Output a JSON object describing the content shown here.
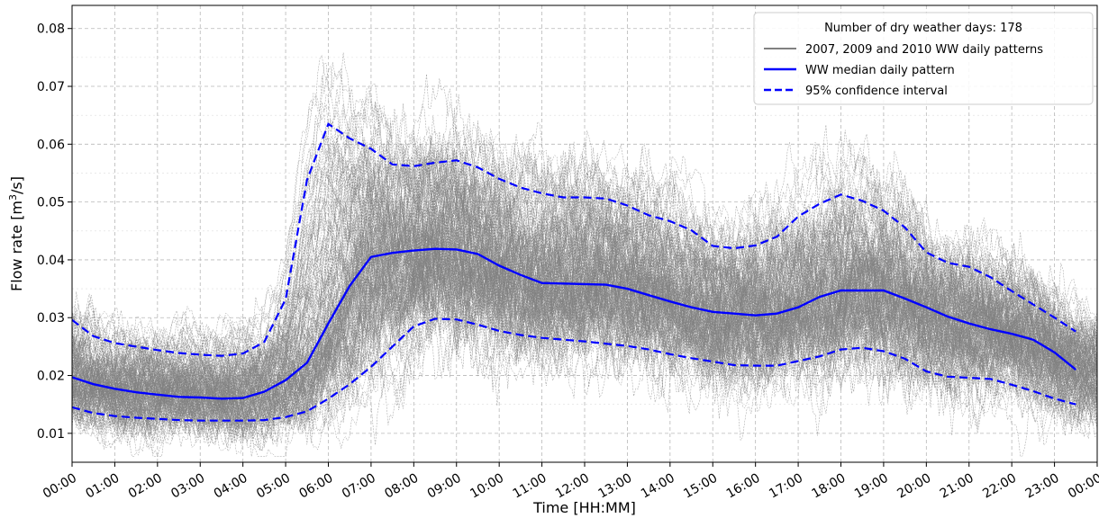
{
  "chart_data": {
    "type": "line",
    "title": "",
    "xlabel": "Time [HH:MM]",
    "ylabel_main": "Flow rate [m",
    "ylabel_sup": "3",
    "ylabel_tail": "/s]",
    "xlim": [
      0,
      24
    ],
    "ylim": [
      0.005,
      0.084
    ],
    "x_ticks": [
      "00:00",
      "01:00",
      "02:00",
      "03:00",
      "04:00",
      "05:00",
      "06:00",
      "07:00",
      "08:00",
      "09:00",
      "10:00",
      "11:00",
      "12:00",
      "13:00",
      "14:00",
      "15:00",
      "16:00",
      "17:00",
      "18:00",
      "19:00",
      "20:00",
      "21:00",
      "22:00",
      "23:00",
      "00:00"
    ],
    "y_ticks": [
      "0.01",
      "0.02",
      "0.03",
      "0.04",
      "0.05",
      "0.06",
      "0.07",
      "0.08"
    ],
    "y_tick_values": [
      0.01,
      0.02,
      0.03,
      0.04,
      0.05,
      0.06,
      0.07,
      0.08
    ],
    "grid": true,
    "legend": {
      "placement": "top-right",
      "title": "Number of dry weather days: 178",
      "entries": [
        "2007, 2009 and 2010 WW daily patterns",
        "WW median daily pattern",
        "95% confidence interval"
      ]
    },
    "daily_patterns_count": 178,
    "series": [
      {
        "name": "WW median daily pattern",
        "style": "solid",
        "color": "#0000ff",
        "x": [
          0,
          0.5,
          1,
          1.5,
          2,
          2.5,
          3,
          3.5,
          4,
          4.5,
          5,
          5.5,
          6,
          6.5,
          7,
          7.5,
          8,
          8.5,
          9,
          9.5,
          10,
          10.5,
          11,
          11.5,
          12,
          12.5,
          13,
          13.5,
          14,
          14.5,
          15,
          15.5,
          16,
          16.5,
          17,
          17.5,
          18,
          18.5,
          19,
          19.5,
          20,
          20.5,
          21,
          21.5,
          22,
          22.5,
          23,
          23.5
        ],
        "values": [
          0.0197,
          0.0185,
          0.0177,
          0.0171,
          0.0167,
          0.0163,
          0.0162,
          0.016,
          0.0161,
          0.0172,
          0.0192,
          0.0222,
          0.029,
          0.0355,
          0.0405,
          0.0412,
          0.0416,
          0.0419,
          0.0418,
          0.041,
          0.039,
          0.0374,
          0.036,
          0.0359,
          0.0358,
          0.0357,
          0.035,
          0.0339,
          0.0328,
          0.0318,
          0.031,
          0.0307,
          0.0304,
          0.0307,
          0.0318,
          0.0336,
          0.0347,
          0.0347,
          0.0347,
          0.0333,
          0.0318,
          0.0302,
          0.029,
          0.028,
          0.0272,
          0.0262,
          0.024,
          0.021
        ]
      },
      {
        "name": "95% confidence interval",
        "style": "dashed",
        "color": "#0000ff",
        "x": [
          0,
          0.5,
          1,
          1.5,
          2,
          2.5,
          3,
          3.5,
          4,
          4.5,
          5,
          5.5,
          6,
          6.5,
          7,
          7.5,
          8,
          8.5,
          9,
          9.5,
          10,
          10.5,
          11,
          11.5,
          12,
          12.5,
          13,
          13.5,
          14,
          14.5,
          15,
          15.5,
          16,
          16.5,
          17,
          17.5,
          18,
          18.5,
          19,
          19.5,
          20,
          20.5,
          21,
          21.5,
          22,
          22.5,
          23,
          23.5
        ],
        "upper": [
          0.0296,
          0.0268,
          0.0256,
          0.025,
          0.0244,
          0.0239,
          0.0236,
          0.0234,
          0.0238,
          0.0258,
          0.0332,
          0.0538,
          0.0635,
          0.061,
          0.0592,
          0.0565,
          0.0562,
          0.0568,
          0.0572,
          0.056,
          0.054,
          0.0525,
          0.0515,
          0.0508,
          0.0508,
          0.0506,
          0.0494,
          0.0477,
          0.0467,
          0.0451,
          0.0424,
          0.042,
          0.0425,
          0.044,
          0.0475,
          0.0497,
          0.0513,
          0.0502,
          0.0485,
          0.0456,
          0.0413,
          0.0395,
          0.0388,
          0.037,
          0.0346,
          0.0323,
          0.03,
          0.0276
        ],
        "lower": [
          0.0145,
          0.0135,
          0.013,
          0.0127,
          0.0125,
          0.0123,
          0.0122,
          0.0122,
          0.0122,
          0.0123,
          0.0128,
          0.0138,
          0.016,
          0.0185,
          0.0215,
          0.025,
          0.0285,
          0.0298,
          0.0297,
          0.0288,
          0.0277,
          0.027,
          0.0265,
          0.0262,
          0.0259,
          0.0255,
          0.0251,
          0.0245,
          0.0237,
          0.023,
          0.0224,
          0.0218,
          0.0217,
          0.0217,
          0.0225,
          0.0233,
          0.0245,
          0.0248,
          0.0242,
          0.0229,
          0.0207,
          0.0198,
          0.0196,
          0.0194,
          0.0184,
          0.0173,
          0.016,
          0.015
        ]
      }
    ]
  },
  "colors": {
    "daily_patterns": "#808080",
    "median": "#0000ff",
    "confidence": "#0000ff",
    "grid": "#b0b0b0"
  }
}
